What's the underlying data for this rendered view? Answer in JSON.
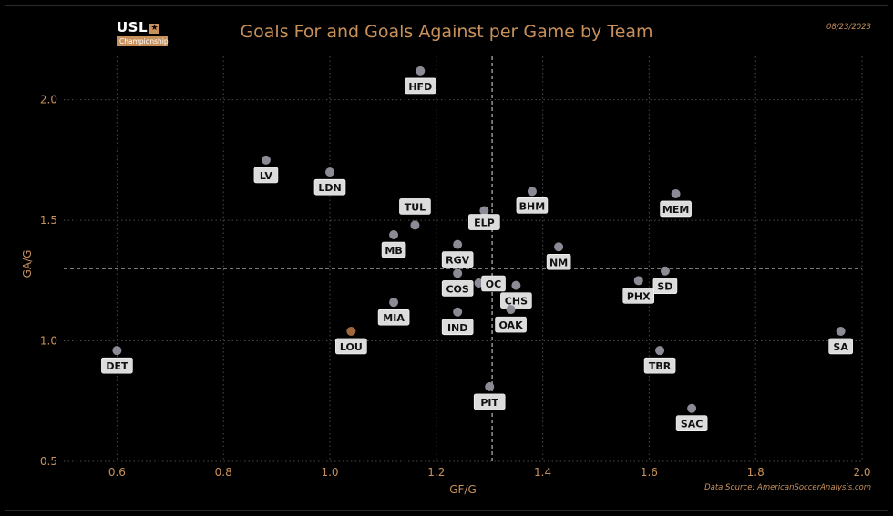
{
  "title": "Goals For and Goals Against per Game by Team",
  "date": "08/23/2023",
  "source": "Data Source: AmericanSoccerAnalysis.com",
  "logo": {
    "mark": "USL",
    "star": "★",
    "sub": "Championship"
  },
  "colors": {
    "accent": "#c8915c",
    "point": "#8b8b96",
    "highlight": "#a0673c",
    "label_bg": "#dcdcdc"
  },
  "chart_data": {
    "type": "scatter",
    "title": "Goals For and Goals Against per Game by Team",
    "xlabel": "GF/G",
    "ylabel": "GA/G",
    "xlim": [
      0.5,
      2.0
    ],
    "ylim": [
      0.5,
      2.2
    ],
    "xticks": [
      "0.6",
      "0.8",
      "1.0",
      "1.2",
      "1.4",
      "1.6",
      "1.8",
      "2.0"
    ],
    "yticks": [
      "0.5",
      "1.0",
      "1.5",
      "2.0"
    ],
    "grid": true,
    "reference_lines": {
      "x": 1.305,
      "y": 1.3
    },
    "points": [
      {
        "team": "HFD",
        "x": 1.17,
        "y": 2.12
      },
      {
        "team": "LV",
        "x": 0.88,
        "y": 1.75
      },
      {
        "team": "LDN",
        "x": 1.0,
        "y": 1.7
      },
      {
        "team": "BHM",
        "x": 1.38,
        "y": 1.62
      },
      {
        "team": "MEM",
        "x": 1.65,
        "y": 1.61
      },
      {
        "team": "ELP",
        "x": 1.29,
        "y": 1.54
      },
      {
        "team": "TUL",
        "x": 1.16,
        "y": 1.48
      },
      {
        "team": "MB",
        "x": 1.12,
        "y": 1.44
      },
      {
        "team": "RGV",
        "x": 1.24,
        "y": 1.4
      },
      {
        "team": "NM",
        "x": 1.43,
        "y": 1.39
      },
      {
        "team": "SD",
        "x": 1.63,
        "y": 1.29
      },
      {
        "team": "COS",
        "x": 1.24,
        "y": 1.28
      },
      {
        "team": "PHX",
        "x": 1.58,
        "y": 1.25
      },
      {
        "team": "OC",
        "x": 1.28,
        "y": 1.24
      },
      {
        "team": "CHS",
        "x": 1.35,
        "y": 1.23
      },
      {
        "team": "MIA",
        "x": 1.12,
        "y": 1.16
      },
      {
        "team": "OAK",
        "x": 1.34,
        "y": 1.13
      },
      {
        "team": "IND",
        "x": 1.24,
        "y": 1.12
      },
      {
        "team": "LOU",
        "x": 1.04,
        "y": 1.04,
        "highlight": true
      },
      {
        "team": "SA",
        "x": 1.96,
        "y": 1.04
      },
      {
        "team": "DET",
        "x": 0.6,
        "y": 0.96
      },
      {
        "team": "TBR",
        "x": 1.62,
        "y": 0.96
      },
      {
        "team": "PIT",
        "x": 1.3,
        "y": 0.81
      },
      {
        "team": "SAC",
        "x": 1.68,
        "y": 0.72
      }
    ]
  }
}
